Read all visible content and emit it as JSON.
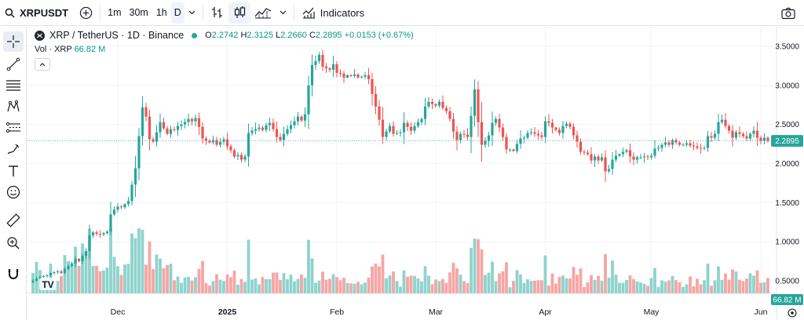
{
  "toolbar": {
    "symbol": "XRPUSDT",
    "intervals": [
      "1m",
      "30m",
      "1h",
      "D"
    ],
    "active_interval": "D",
    "indicators_label": "Indicators"
  },
  "legend": {
    "title": "XRP / TetherUS · 1D · Binance",
    "open_label": "O",
    "open": "2.2742",
    "high_label": "H",
    "high": "2.3125",
    "low_label": "L",
    "low": "2.2660",
    "close_label": "C",
    "close": "2.2895",
    "change": "+0.0153 (+0.67%)",
    "vol_label": "Vol · XRP",
    "vol_value": "66.82 M"
  },
  "price_axis": {
    "ticks": [
      "3.5000",
      "3.0000",
      "2.5000",
      "2.0000",
      "1.5000",
      "1.0000",
      "0.5000"
    ],
    "current_price": "2.2895",
    "current_volume": "66.82 M"
  },
  "time_axis": {
    "labels": [
      "Dec",
      "2025",
      "Feb",
      "Mar",
      "Apr",
      "May",
      "Jun"
    ]
  },
  "colors": {
    "up": "#26a69a",
    "down": "#ef5350",
    "up_volume": "#8fd3cc",
    "down_volume": "#f5a6a5",
    "grid": "#f0f3fa"
  },
  "chart_data": {
    "type": "candlestick",
    "title": "XRP / TetherUS · 1D · Binance",
    "ylim": [
      0,
      3.6
    ],
    "y_ticks": [
      0.5,
      1.0,
      1.5,
      2.0,
      2.5,
      3.0,
      3.5
    ],
    "month_ticks": [
      {
        "label": "Dec",
        "day": 24
      },
      {
        "label": "2025",
        "day": 55
      },
      {
        "label": "Feb",
        "day": 86
      },
      {
        "label": "Mar",
        "day": 114
      },
      {
        "label": "Apr",
        "day": 145
      },
      {
        "label": "May",
        "day": 175
      },
      {
        "label": "Jun",
        "day": 206
      }
    ],
    "close_series": [
      0.5,
      0.53,
      0.55,
      0.56,
      0.57,
      0.6,
      0.61,
      0.62,
      0.6,
      0.65,
      0.69,
      0.72,
      0.78,
      0.75,
      0.82,
      0.88,
      1.08,
      1.12,
      1.1,
      1.09,
      1.11,
      1.13,
      1.35,
      1.41,
      1.45,
      1.44,
      1.48,
      1.52,
      1.73,
      1.94,
      2.35,
      2.72,
      2.6,
      2.31,
      2.28,
      2.4,
      2.53,
      2.45,
      2.38,
      2.44,
      2.43,
      2.48,
      2.5,
      2.53,
      2.57,
      2.54,
      2.58,
      2.47,
      2.32,
      2.29,
      2.27,
      2.3,
      2.24,
      2.28,
      2.31,
      2.22,
      2.17,
      2.09,
      2.11,
      2.05,
      2.09,
      2.39,
      2.42,
      2.44,
      2.46,
      2.43,
      2.49,
      2.52,
      2.44,
      2.34,
      2.3,
      2.38,
      2.44,
      2.49,
      2.54,
      2.6,
      2.55,
      2.63,
      3.0,
      3.26,
      3.31,
      3.39,
      3.24,
      3.22,
      3.2,
      3.27,
      3.16,
      3.15,
      3.1,
      3.13,
      3.12,
      3.14,
      3.1,
      3.11,
      3.13,
      3.08,
      2.89,
      2.73,
      2.56,
      2.34,
      2.41,
      2.48,
      2.38,
      2.39,
      2.4,
      2.52,
      2.47,
      2.42,
      2.48,
      2.53,
      2.57,
      2.73,
      2.79,
      2.76,
      2.74,
      2.79,
      2.71,
      2.67,
      2.57,
      2.41,
      2.3,
      2.38,
      2.37,
      2.34,
      2.61,
      2.95,
      2.53,
      2.24,
      2.29,
      2.36,
      2.52,
      2.57,
      2.46,
      2.34,
      2.18,
      2.18,
      2.16,
      2.25,
      2.32,
      2.33,
      2.39,
      2.4,
      2.38,
      2.36,
      2.34,
      2.54,
      2.52,
      2.46,
      2.43,
      2.39,
      2.48,
      2.51,
      2.47,
      2.36,
      2.28,
      2.15,
      2.14,
      2.12,
      2.04,
      2.09,
      2.04,
      2.08,
      1.9,
      1.93,
      2.05,
      2.1,
      2.12,
      2.15,
      2.17,
      2.09,
      2.05,
      2.08,
      2.08,
      2.09,
      2.08,
      2.1,
      2.19,
      2.2,
      2.24,
      2.27,
      2.24,
      2.3,
      2.27,
      2.24,
      2.24,
      2.26,
      2.23,
      2.22,
      2.2,
      2.19,
      2.2,
      2.35,
      2.33,
      2.38,
      2.53,
      2.56,
      2.48,
      2.42,
      2.33,
      2.4,
      2.38,
      2.35,
      2.32,
      2.38,
      2.42,
      2.33,
      2.29,
      2.33,
      2.29
    ]
  }
}
